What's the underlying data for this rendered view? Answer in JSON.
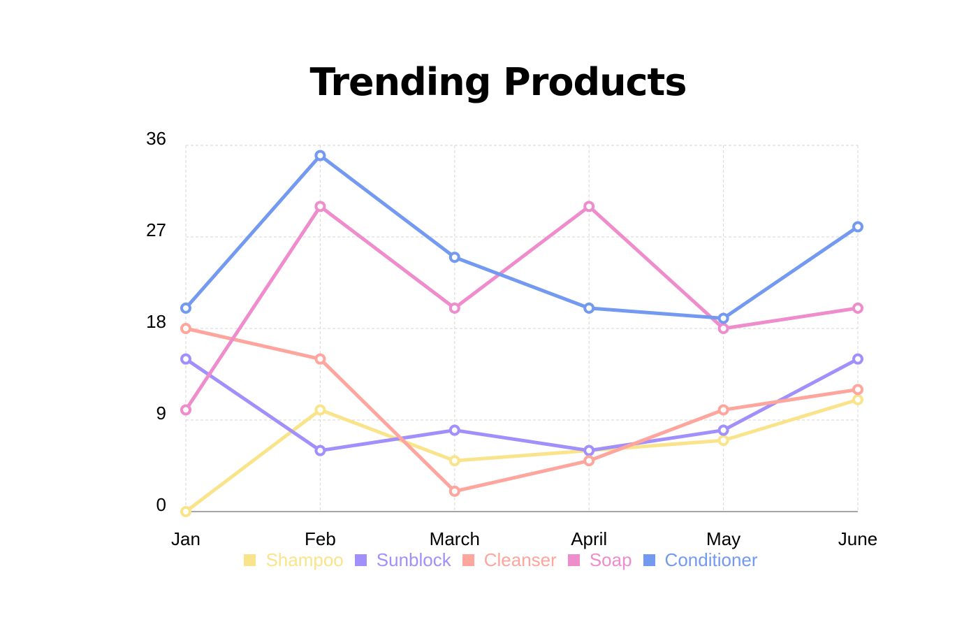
{
  "chart_data": {
    "type": "line",
    "title": "Trending Products",
    "xlabel": "",
    "ylabel": "",
    "categories": [
      "Jan",
      "Feb",
      "March",
      "April",
      "May",
      "June"
    ],
    "ylim": [
      0,
      36
    ],
    "yticks": [
      "0",
      "9",
      "18",
      "27",
      "36"
    ],
    "grid": true,
    "legend_position": "bottom",
    "series": [
      {
        "name": "Shampoo",
        "color": "#f9e48b",
        "values": [
          0,
          10,
          5,
          6,
          7,
          11
        ]
      },
      {
        "name": "Sunblock",
        "color": "#a190fb",
        "values": [
          15,
          6,
          8,
          6,
          8,
          15
        ]
      },
      {
        "name": "Cleanser",
        "color": "#fea59d",
        "values": [
          18,
          15,
          2,
          5,
          10,
          12
        ]
      },
      {
        "name": "Soap",
        "color": "#ee8ccc",
        "values": [
          10,
          30,
          20,
          30,
          18,
          20
        ]
      },
      {
        "name": "Conditioner",
        "color": "#7399f0",
        "values": [
          20,
          35,
          25,
          20,
          19,
          28
        ]
      }
    ]
  }
}
